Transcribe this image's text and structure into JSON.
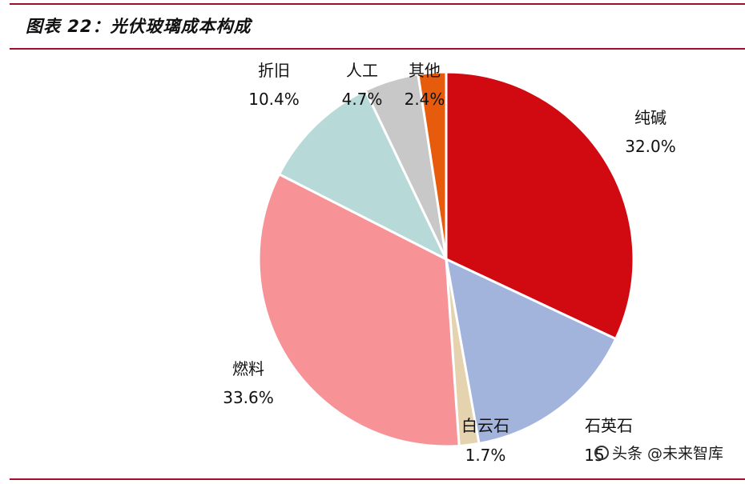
{
  "title": "图表 22：光伏玻璃成本构成",
  "chart_data": {
    "type": "pie",
    "start_angle_deg": 0,
    "direction": "clockwise",
    "slices": [
      {
        "label": "纯碱",
        "value": 32.0,
        "value_text": "32.0%",
        "color": "#d10a12"
      },
      {
        "label": "石英石",
        "value": 15.2,
        "value_text": "15",
        "color": "#a3b4dc"
      },
      {
        "label": "白云石",
        "value": 1.7,
        "value_text": "1.7%",
        "color": "#e5d2ae"
      },
      {
        "label": "燃料",
        "value": 33.6,
        "value_text": "33.6%",
        "color": "#f79397"
      },
      {
        "label": "折旧",
        "value": 10.4,
        "value_text": "10.4%",
        "color": "#b7d9d8"
      },
      {
        "label": "人工",
        "value": 4.7,
        "value_text": "4.7%",
        "color": "#c8c8c8"
      },
      {
        "label": "其他",
        "value": 2.4,
        "value_text": "2.4%",
        "color": "#e75b0c"
      }
    ]
  },
  "watermark": {
    "text": "头条 @未来智库"
  }
}
